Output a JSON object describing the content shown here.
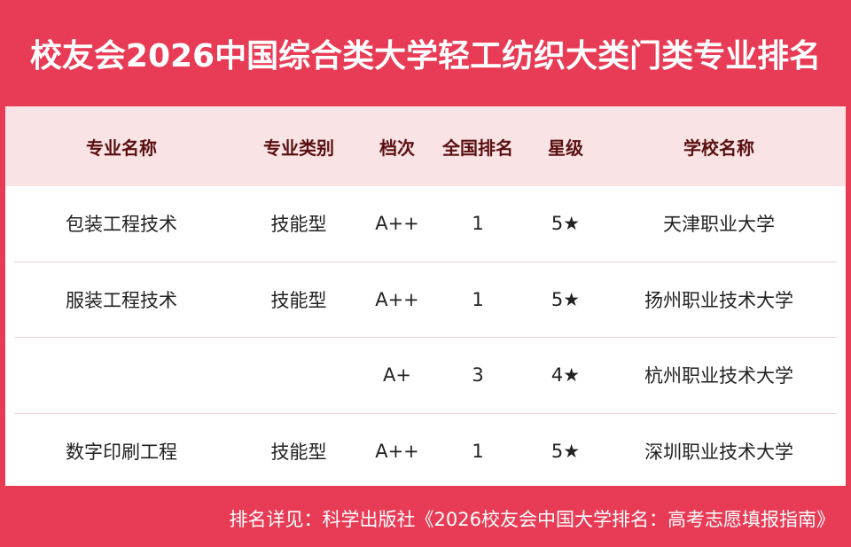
{
  "title": "校友会2026中国综合类大学轻工纺织大类门类专业排名",
  "columns": [
    "专业名称",
    "专业类别",
    "档次",
    "全国排名",
    "星级",
    "学校名称"
  ],
  "rows": [
    [
      "包装工程技术",
      "技能型",
      "A++",
      "1",
      "5★",
      "天津职业大学"
    ],
    [
      "服装工程技术",
      "技能型",
      "A++",
      "1",
      "5★",
      "扬州职业技术大学"
    ],
    [
      "",
      "",
      "A+",
      "3",
      "4★",
      "杭州职业技术大学"
    ],
    [
      "数字印刷工程",
      "技能型",
      "A++",
      "1",
      "5★",
      "深圳职业技术大学"
    ]
  ],
  "footer": "排名详见：科学出版社《2026校友会中国大学排名：高考志愿填报指南》",
  "colors": {
    "background": "#e83c56",
    "header_row": "#f9e3e5",
    "header_text": "#5a1010"
  }
}
